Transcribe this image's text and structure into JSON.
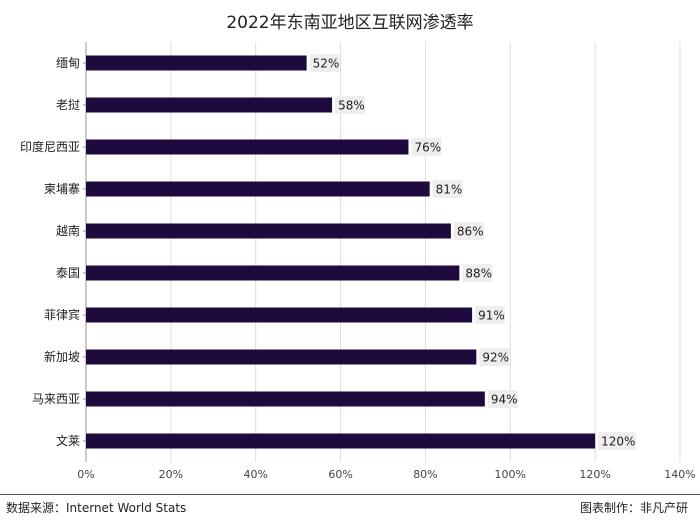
{
  "chart_data": {
    "type": "bar",
    "orientation": "horizontal",
    "title": "2022年东南亚地区互联网渗透率",
    "categories": [
      "缅甸",
      "老挝",
      "印度尼西亚",
      "柬埔寨",
      "越南",
      "泰国",
      "菲律宾",
      "新加坡",
      "马来西亚",
      "文莱"
    ],
    "values": [
      52,
      58,
      76,
      81,
      86,
      88,
      91,
      92,
      94,
      120
    ],
    "value_labels": [
      "52%",
      "58%",
      "76%",
      "81%",
      "86%",
      "88%",
      "91%",
      "92%",
      "94%",
      "120%"
    ],
    "x_ticks": [
      "0%",
      "20%",
      "40%",
      "60%",
      "80%",
      "100%",
      "120%",
      "140%"
    ],
    "xlim": [
      0,
      140
    ],
    "grid": "vertical",
    "bar_color": "#1e0a3c",
    "label_bg_color": "#eeeeee"
  },
  "footer": {
    "source": "数据来源：Internet World Stats",
    "credit": "图表制作：非凡产研"
  }
}
